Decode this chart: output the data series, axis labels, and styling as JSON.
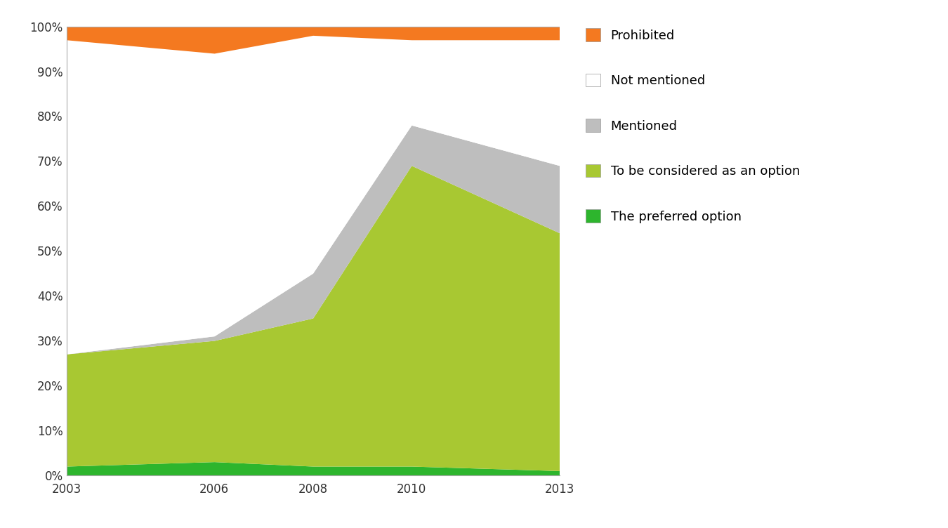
{
  "years": [
    2003,
    2006,
    2008,
    2010,
    2013
  ],
  "preferred_option": [
    2,
    3,
    2,
    2,
    1
  ],
  "to_be_considered": [
    25,
    27,
    33,
    67,
    53
  ],
  "mentioned": [
    0,
    1,
    10,
    9,
    15
  ],
  "not_mentioned": [
    70,
    63,
    53,
    19,
    28
  ],
  "prohibited": [
    3,
    6,
    2,
    3,
    3
  ],
  "colors": {
    "prohibited": "#F47920",
    "not_mentioned": "#FFFFFF",
    "mentioned": "#BEBEBE",
    "to_be_considered": "#A8C832",
    "preferred_option": "#2DB52D"
  },
  "legend_labels": [
    "Prohibited",
    "Not mentioned",
    "Mentioned",
    "To be considered as an option",
    "The preferred option"
  ],
  "background_color": "#FFFFFF",
  "plot_area_color": "#FFFFFF",
  "figsize": [
    13.5,
    7.52
  ],
  "dpi": 100
}
